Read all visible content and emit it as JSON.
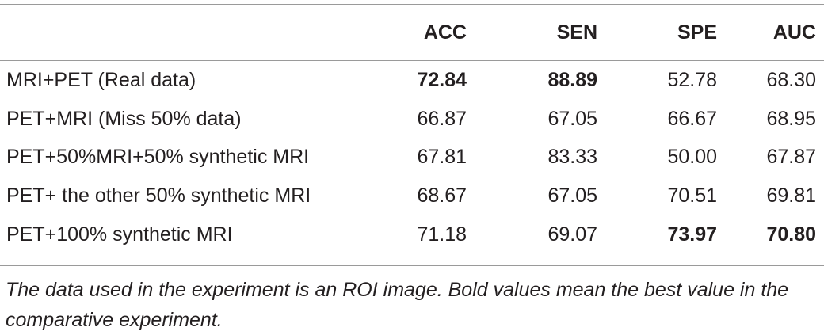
{
  "table": {
    "headers": [
      "",
      "ACC",
      "SEN",
      "SPE",
      "AUC"
    ],
    "rows": [
      {
        "label": "MRI+PET (Real data)",
        "values": [
          "72.84",
          "88.89",
          "52.78",
          "68.30"
        ],
        "bold": [
          true,
          true,
          false,
          false
        ]
      },
      {
        "label": "PET+MRI (Miss 50% data)",
        "values": [
          "66.87",
          "67.05",
          "66.67",
          "68.95"
        ],
        "bold": [
          false,
          false,
          false,
          false
        ]
      },
      {
        "label": "PET+50%MRI+50% synthetic MRI",
        "values": [
          "67.81",
          "83.33",
          "50.00",
          "67.87"
        ],
        "bold": [
          false,
          false,
          false,
          false
        ]
      },
      {
        "label": "PET+ the other 50% synthetic MRI",
        "values": [
          "68.67",
          "67.05",
          "70.51",
          "69.81"
        ],
        "bold": [
          false,
          false,
          false,
          false
        ]
      },
      {
        "label": "PET+100% synthetic MRI",
        "values": [
          "71.18",
          "69.07",
          "73.97",
          "70.80"
        ],
        "bold": [
          false,
          false,
          true,
          true
        ]
      }
    ]
  },
  "footnote": "The data used in the experiment is an ROI image. Bold values mean the best value in the comparative experiment."
}
